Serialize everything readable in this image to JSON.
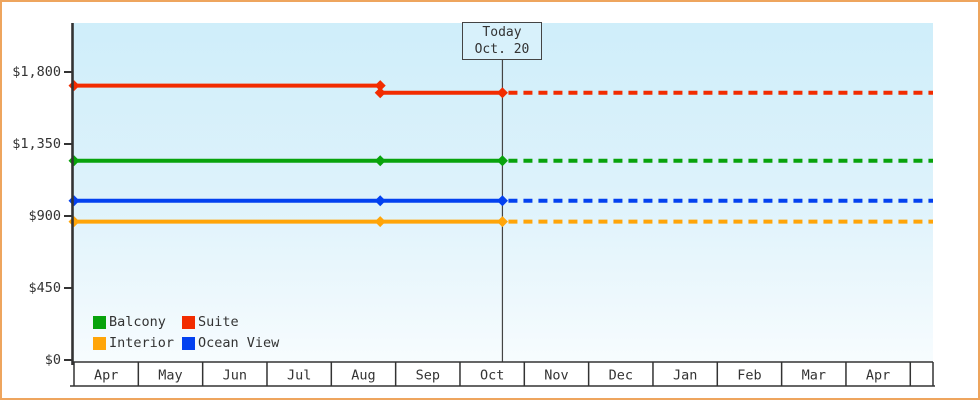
{
  "window": {
    "border_color": "#eea55e",
    "background": "#ffffff"
  },
  "chart_data": {
    "type": "line",
    "description_visible_text_only": "price history lines with projection",
    "x_axis": {
      "categories": [
        "Apr",
        "May",
        "Jun",
        "Jul",
        "Aug",
        "Sep",
        "Oct",
        "Nov",
        "Dec",
        "Jan",
        "Feb",
        "Mar",
        "Apr"
      ],
      "has_trailing_empty_cell": true
    },
    "y_axis": {
      "tick_values": [
        0,
        450,
        900,
        1350,
        1800
      ],
      "tick_labels": [
        "$0",
        "$450",
        "$900",
        "$1,350",
        "$1,800"
      ],
      "range": [
        0,
        2100
      ]
    },
    "series": [
      {
        "name": "Balcony",
        "color": "#08a30c",
        "points": [
          {
            "month": 0,
            "price": 1245
          },
          {
            "month": 4.76,
            "price": 1245
          },
          {
            "month": 6.66,
            "price": 1245
          }
        ]
      },
      {
        "name": "Suite",
        "color": "#f22c00",
        "points": [
          {
            "month": 0,
            "price": 1715
          },
          {
            "month": 4.76,
            "price": 1715
          },
          {
            "month": 4.76,
            "price": 1670
          },
          {
            "month": 6.66,
            "price": 1670
          }
        ]
      },
      {
        "name": "Interior",
        "color": "#ffa509",
        "points": [
          {
            "month": 0,
            "price": 865
          },
          {
            "month": 4.76,
            "price": 865
          },
          {
            "month": 6.66,
            "price": 865
          }
        ]
      },
      {
        "name": "Ocean View",
        "color": "#0341f0",
        "points": [
          {
            "month": 0,
            "price": 995
          },
          {
            "month": 4.76,
            "price": 995
          },
          {
            "month": 6.66,
            "price": 995
          }
        ]
      }
    ],
    "projection": {
      "style": "dashed",
      "extends_to_right_edge": true
    },
    "annotation": {
      "line1": "Today",
      "line2": "Oct. 20",
      "month": 6.66
    },
    "legend": {
      "position": "bottom-left-inside-plot",
      "order": [
        "Balcony",
        "Suite",
        "Interior",
        "Ocean View"
      ]
    },
    "grid": false,
    "plot_background_gradient": [
      "#cfeefa",
      "#ddf2fb",
      "#f7fcfe"
    ],
    "axis_color": "#333333",
    "today_line_color": "#444444",
    "today_box_fill": "#d8f1fb"
  }
}
